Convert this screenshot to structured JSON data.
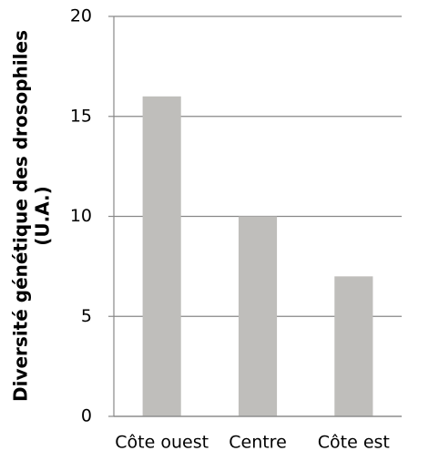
{
  "chart_data": {
    "type": "bar",
    "ylabel": [
      "Diversité génétique des drosophiles",
      "(U.A.)"
    ],
    "categories": [
      "Côte ouest",
      "Centre",
      "Côte est"
    ],
    "values": [
      16,
      10,
      7
    ],
    "color": "#bfbebb",
    "ylim": [
      0,
      20
    ],
    "yticks": [
      0,
      5,
      10,
      15,
      20
    ],
    "grid": true
  }
}
